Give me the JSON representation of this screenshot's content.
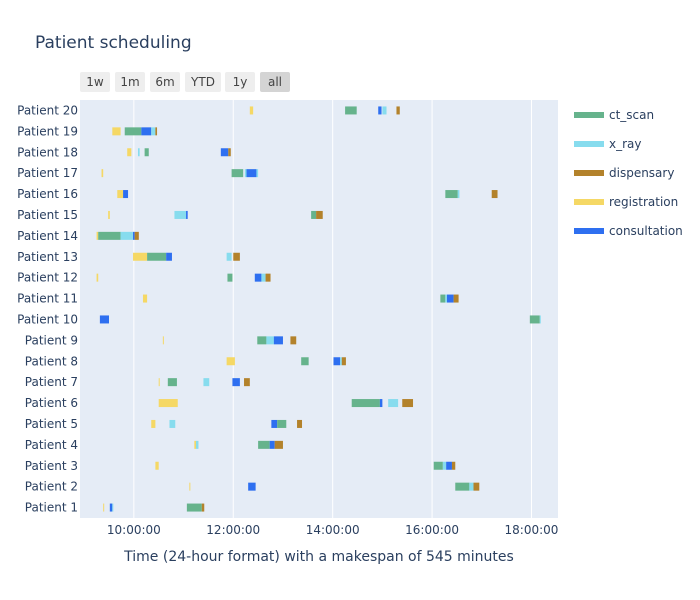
{
  "title": "Patient scheduling",
  "range_selector": {
    "buttons": [
      "1w",
      "1m",
      "6m",
      "YTD",
      "1y",
      "all"
    ],
    "active": "all"
  },
  "colors": {
    "plot_bg": "#e5ecf6",
    "ct_scan": "#66b38c",
    "x_ray": "#87dcee",
    "dispensary": "#b3822b",
    "registration": "#f5d865",
    "consultation": "#2e6ff0"
  },
  "chart_data": {
    "type": "gantt",
    "title": "Patient scheduling",
    "xlabel": "Time (24-hour format) with a makespan of 545 minutes",
    "ylabel": "",
    "x_range": [
      "08:55",
      "18:32"
    ],
    "x_ticks": [
      "10:00:00",
      "12:00:00",
      "14:00:00",
      "16:00:00",
      "18:00:00"
    ],
    "categories": [
      "Patient 1",
      "Patient 2",
      "Patient 3",
      "Patient 4",
      "Patient 5",
      "Patient 6",
      "Patient 7",
      "Patient 8",
      "Patient 9",
      "Patient 10",
      "Patient 11",
      "Patient 12",
      "Patient 13",
      "Patient 14",
      "Patient 15",
      "Patient 16",
      "Patient 17",
      "Patient 18",
      "Patient 19",
      "Patient 20"
    ],
    "legend": [
      "ct_scan",
      "x_ray",
      "dispensary",
      "registration",
      "consultation"
    ],
    "legend_position": "right",
    "tasks": [
      {
        "patient": "Patient 20",
        "task": "registration",
        "start": "12:20",
        "end": "12:24"
      },
      {
        "patient": "Patient 20",
        "task": "ct_scan",
        "start": "14:15",
        "end": "14:29"
      },
      {
        "patient": "Patient 20",
        "task": "consultation",
        "start": "14:55",
        "end": "14:59"
      },
      {
        "patient": "Patient 20",
        "task": "x_ray",
        "start": "15:00",
        "end": "15:05"
      },
      {
        "patient": "Patient 20",
        "task": "dispensary",
        "start": "15:17",
        "end": "15:21"
      },
      {
        "patient": "Patient 19",
        "task": "registration",
        "start": "09:34",
        "end": "09:44"
      },
      {
        "patient": "Patient 19",
        "task": "ct_scan",
        "start": "09:49",
        "end": "10:09"
      },
      {
        "patient": "Patient 19",
        "task": "consultation",
        "start": "10:09",
        "end": "10:21"
      },
      {
        "patient": "Patient 19",
        "task": "x_ray",
        "start": "10:21",
        "end": "10:26"
      },
      {
        "patient": "Patient 19",
        "task": "dispensary",
        "start": "10:26",
        "end": "10:28"
      },
      {
        "patient": "Patient 18",
        "task": "registration",
        "start": "09:52",
        "end": "09:57"
      },
      {
        "patient": "Patient 18",
        "task": "x_ray",
        "start": "10:05",
        "end": "10:07"
      },
      {
        "patient": "Patient 18",
        "task": "ct_scan",
        "start": "10:13",
        "end": "10:18"
      },
      {
        "patient": "Patient 18",
        "task": "consultation",
        "start": "11:45",
        "end": "11:54"
      },
      {
        "patient": "Patient 18",
        "task": "dispensary",
        "start": "11:54",
        "end": "11:57"
      },
      {
        "patient": "Patient 17",
        "task": "registration",
        "start": "09:21",
        "end": "09:23"
      },
      {
        "patient": "Patient 17",
        "task": "ct_scan",
        "start": "11:58",
        "end": "12:12"
      },
      {
        "patient": "Patient 17",
        "task": "x_ray",
        "start": "12:14",
        "end": "12:16"
      },
      {
        "patient": "Patient 17",
        "task": "consultation",
        "start": "12:16",
        "end": "12:28"
      },
      {
        "patient": "Patient 17",
        "task": "x_ray",
        "start": "12:28",
        "end": "12:30"
      },
      {
        "patient": "Patient 16",
        "task": "registration",
        "start": "09:40",
        "end": "09:47"
      },
      {
        "patient": "Patient 16",
        "task": "consultation",
        "start": "09:47",
        "end": "09:53"
      },
      {
        "patient": "Patient 16",
        "task": "ct_scan",
        "start": "16:16",
        "end": "16:31"
      },
      {
        "patient": "Patient 16",
        "task": "x_ray",
        "start": "16:31",
        "end": "16:33"
      },
      {
        "patient": "Patient 16",
        "task": "dispensary",
        "start": "17:12",
        "end": "17:19"
      },
      {
        "patient": "Patient 15",
        "task": "registration",
        "start": "09:29",
        "end": "09:31"
      },
      {
        "patient": "Patient 15",
        "task": "x_ray",
        "start": "10:49",
        "end": "11:03"
      },
      {
        "patient": "Patient 15",
        "task": "consultation",
        "start": "11:03",
        "end": "11:05"
      },
      {
        "patient": "Patient 15",
        "task": "ct_scan",
        "start": "13:34",
        "end": "13:40"
      },
      {
        "patient": "Patient 15",
        "task": "dispensary",
        "start": "13:40",
        "end": "13:48"
      },
      {
        "patient": "Patient 14",
        "task": "registration",
        "start": "09:15",
        "end": "09:17"
      },
      {
        "patient": "Patient 14",
        "task": "ct_scan",
        "start": "09:17",
        "end": "09:44"
      },
      {
        "patient": "Patient 14",
        "task": "x_ray",
        "start": "09:44",
        "end": "09:59"
      },
      {
        "patient": "Patient 14",
        "task": "consultation",
        "start": "09:59",
        "end": "10:01"
      },
      {
        "patient": "Patient 14",
        "task": "dispensary",
        "start": "10:01",
        "end": "10:06"
      },
      {
        "patient": "Patient 13",
        "task": "registration",
        "start": "09:59",
        "end": "10:16"
      },
      {
        "patient": "Patient 13",
        "task": "ct_scan",
        "start": "10:16",
        "end": "10:39"
      },
      {
        "patient": "Patient 13",
        "task": "consultation",
        "start": "10:39",
        "end": "10:46"
      },
      {
        "patient": "Patient 13",
        "task": "x_ray",
        "start": "11:52",
        "end": "11:58"
      },
      {
        "patient": "Patient 13",
        "task": "dispensary",
        "start": "12:00",
        "end": "12:08"
      },
      {
        "patient": "Patient 12",
        "task": "registration",
        "start": "09:15",
        "end": "09:17"
      },
      {
        "patient": "Patient 12",
        "task": "ct_scan",
        "start": "11:53",
        "end": "11:59"
      },
      {
        "patient": "Patient 12",
        "task": "consultation",
        "start": "12:26",
        "end": "12:34"
      },
      {
        "patient": "Patient 12",
        "task": "x_ray",
        "start": "12:34",
        "end": "12:39"
      },
      {
        "patient": "Patient 12",
        "task": "dispensary",
        "start": "12:39",
        "end": "12:45"
      },
      {
        "patient": "Patient 11",
        "task": "registration",
        "start": "10:11",
        "end": "10:16"
      },
      {
        "patient": "Patient 11",
        "task": "ct_scan",
        "start": "16:10",
        "end": "16:16"
      },
      {
        "patient": "Patient 11",
        "task": "x_ray",
        "start": "16:16",
        "end": "16:18"
      },
      {
        "patient": "Patient 11",
        "task": "consultation",
        "start": "16:18",
        "end": "16:26"
      },
      {
        "patient": "Patient 11",
        "task": "dispensary",
        "start": "16:26",
        "end": "16:32"
      },
      {
        "patient": "Patient 10",
        "task": "consultation",
        "start": "09:19",
        "end": "09:30"
      },
      {
        "patient": "Patient 10",
        "task": "ct_scan",
        "start": "17:58",
        "end": "18:10"
      },
      {
        "patient": "Patient 10",
        "task": "x_ray",
        "start": "18:10",
        "end": "18:11"
      },
      {
        "patient": "Patient 9",
        "task": "registration",
        "start": "10:35",
        "end": "10:36"
      },
      {
        "patient": "Patient 9",
        "task": "ct_scan",
        "start": "12:29",
        "end": "12:40"
      },
      {
        "patient": "Patient 9",
        "task": "x_ray",
        "start": "12:40",
        "end": "12:49"
      },
      {
        "patient": "Patient 9",
        "task": "consultation",
        "start": "12:49",
        "end": "13:00"
      },
      {
        "patient": "Patient 9",
        "task": "dispensary",
        "start": "13:09",
        "end": "13:16"
      },
      {
        "patient": "Patient 8",
        "task": "registration",
        "start": "11:52",
        "end": "12:02"
      },
      {
        "patient": "Patient 8",
        "task": "ct_scan",
        "start": "13:22",
        "end": "13:31"
      },
      {
        "patient": "Patient 8",
        "task": "consultation",
        "start": "14:01",
        "end": "14:09"
      },
      {
        "patient": "Patient 8",
        "task": "x_ray",
        "start": "14:09",
        "end": "14:11"
      },
      {
        "patient": "Patient 8",
        "task": "dispensary",
        "start": "14:11",
        "end": "14:16"
      },
      {
        "patient": "Patient 7",
        "task": "registration",
        "start": "10:30",
        "end": "10:31"
      },
      {
        "patient": "Patient 7",
        "task": "ct_scan",
        "start": "10:41",
        "end": "10:52"
      },
      {
        "patient": "Patient 7",
        "task": "x_ray",
        "start": "11:24",
        "end": "11:31"
      },
      {
        "patient": "Patient 7",
        "task": "consultation",
        "start": "11:59",
        "end": "12:08"
      },
      {
        "patient": "Patient 7",
        "task": "dispensary",
        "start": "12:13",
        "end": "12:20"
      },
      {
        "patient": "Patient 6",
        "task": "registration",
        "start": "10:30",
        "end": "10:53"
      },
      {
        "patient": "Patient 6",
        "task": "ct_scan",
        "start": "14:23",
        "end": "14:57"
      },
      {
        "patient": "Patient 6",
        "task": "consultation",
        "start": "14:57",
        "end": "15:00"
      },
      {
        "patient": "Patient 6",
        "task": "x_ray",
        "start": "15:07",
        "end": "15:19"
      },
      {
        "patient": "Patient 6",
        "task": "dispensary",
        "start": "15:24",
        "end": "15:37"
      },
      {
        "patient": "Patient 5",
        "task": "registration",
        "start": "10:21",
        "end": "10:26"
      },
      {
        "patient": "Patient 5",
        "task": "x_ray",
        "start": "10:43",
        "end": "10:50"
      },
      {
        "patient": "Patient 5",
        "task": "consultation",
        "start": "12:46",
        "end": "12:53"
      },
      {
        "patient": "Patient 5",
        "task": "ct_scan",
        "start": "12:53",
        "end": "13:04"
      },
      {
        "patient": "Patient 5",
        "task": "dispensary",
        "start": "13:17",
        "end": "13:23"
      },
      {
        "patient": "Patient 4",
        "task": "registration",
        "start": "11:13",
        "end": "11:15"
      },
      {
        "patient": "Patient 4",
        "task": "x_ray",
        "start": "11:15",
        "end": "11:18"
      },
      {
        "patient": "Patient 4",
        "task": "ct_scan",
        "start": "12:30",
        "end": "12:44"
      },
      {
        "patient": "Patient 4",
        "task": "consultation",
        "start": "12:44",
        "end": "12:50"
      },
      {
        "patient": "Patient 4",
        "task": "dispensary",
        "start": "12:50",
        "end": "13:00"
      },
      {
        "patient": "Patient 3",
        "task": "registration",
        "start": "10:26",
        "end": "10:30"
      },
      {
        "patient": "Patient 3",
        "task": "ct_scan",
        "start": "16:02",
        "end": "16:13"
      },
      {
        "patient": "Patient 3",
        "task": "x_ray",
        "start": "16:13",
        "end": "16:17"
      },
      {
        "patient": "Patient 3",
        "task": "consultation",
        "start": "16:17",
        "end": "16:24"
      },
      {
        "patient": "Patient 3",
        "task": "dispensary",
        "start": "16:24",
        "end": "16:28"
      },
      {
        "patient": "Patient 2",
        "task": "registration",
        "start": "11:07",
        "end": "11:08"
      },
      {
        "patient": "Patient 2",
        "task": "consultation",
        "start": "12:18",
        "end": "12:27"
      },
      {
        "patient": "Patient 2",
        "task": "ct_scan",
        "start": "16:28",
        "end": "16:45"
      },
      {
        "patient": "Patient 2",
        "task": "x_ray",
        "start": "16:45",
        "end": "16:50"
      },
      {
        "patient": "Patient 2",
        "task": "dispensary",
        "start": "16:50",
        "end": "16:57"
      },
      {
        "patient": "Patient 1",
        "task": "registration",
        "start": "09:23",
        "end": "09:24"
      },
      {
        "patient": "Patient 1",
        "task": "consultation",
        "start": "09:31",
        "end": "09:34"
      },
      {
        "patient": "Patient 1",
        "task": "x_ray",
        "start": "09:34",
        "end": "09:35"
      },
      {
        "patient": "Patient 1",
        "task": "ct_scan",
        "start": "11:04",
        "end": "11:22"
      },
      {
        "patient": "Patient 1",
        "task": "dispensary",
        "start": "11:22",
        "end": "11:25"
      }
    ]
  }
}
